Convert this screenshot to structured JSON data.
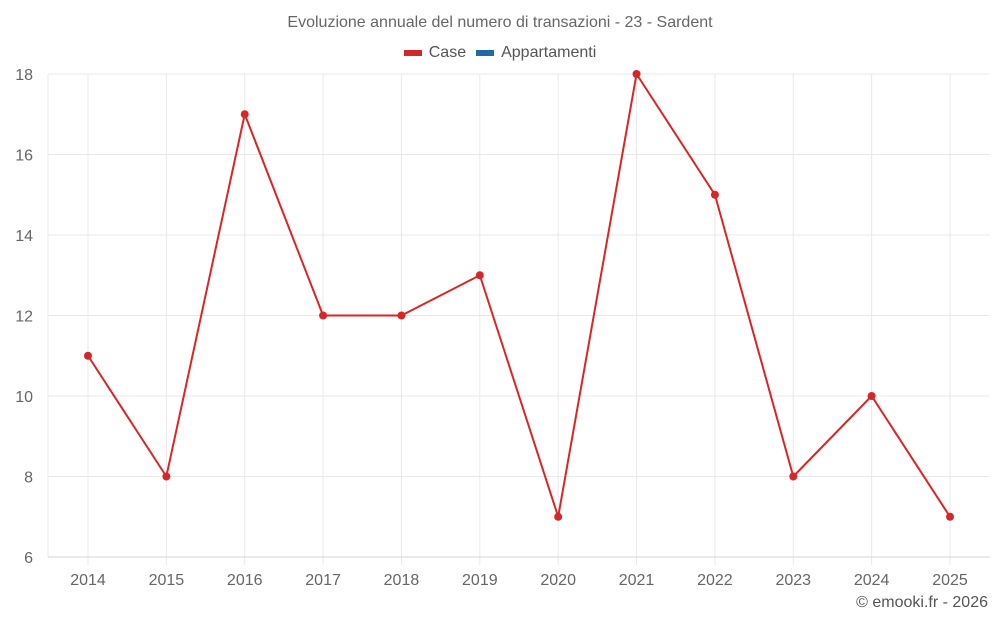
{
  "chart_data": {
    "type": "line",
    "title": "Evoluzione annuale del numero di transazioni - 23 - Sardent",
    "xlabel": "",
    "ylabel": "",
    "categories": [
      "2014",
      "2015",
      "2016",
      "2017",
      "2018",
      "2019",
      "2020",
      "2021",
      "2022",
      "2023",
      "2024",
      "2025"
    ],
    "series": [
      {
        "name": "Case",
        "color": "#d62728",
        "values": [
          11,
          8,
          17,
          12,
          12,
          13,
          7,
          18,
          15,
          8,
          10,
          7
        ]
      },
      {
        "name": "Appartamenti",
        "color": "#1f6aa5",
        "values": []
      }
    ],
    "yticks": [
      6,
      8,
      10,
      12,
      14,
      16,
      18
    ],
    "ylim": [
      6,
      18
    ],
    "grid": true,
    "legend_position": "top"
  },
  "legend": {
    "items": [
      {
        "label": "Case",
        "color": "#d62728"
      },
      {
        "label": "Appartamenti",
        "color": "#1f6aa5"
      }
    ]
  },
  "credit": "© emooki.fr - 2026"
}
